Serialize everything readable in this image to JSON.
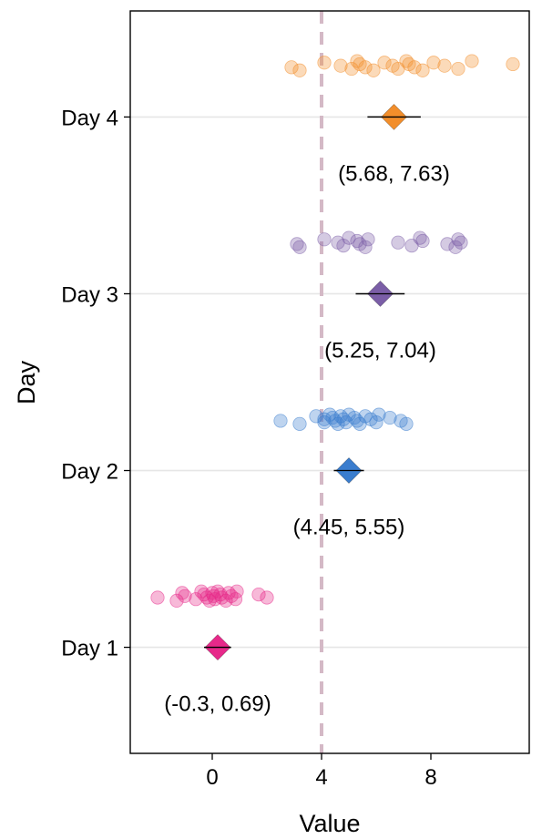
{
  "chart_data": {
    "type": "scatter",
    "title": "",
    "xlabel": "Value",
    "ylabel": "Day",
    "xlim": [
      -3,
      11.6
    ],
    "x_ticks": [
      0,
      4,
      8
    ],
    "x_tick_labels": [
      "0",
      "4",
      "8"
    ],
    "reference_line_x": 4,
    "reference_line_color": "#d4b9c6",
    "categories": [
      "Day 1",
      "Day 2",
      "Day 3",
      "Day 4"
    ],
    "grid": "horizontal",
    "series": [
      {
        "category": "Day 1",
        "color": "#e7298a",
        "points": [
          -2.0,
          -1.3,
          -1.1,
          -1.0,
          -0.6,
          -0.4,
          -0.3,
          -0.2,
          -0.1,
          0.0,
          0.05,
          0.1,
          0.2,
          0.3,
          0.35,
          0.5,
          0.6,
          0.7,
          0.85,
          0.9,
          1.7,
          2.0
        ],
        "mean": 0.2,
        "ci": [
          -0.3,
          0.69
        ],
        "ci_label": "(-0.3, 0.69)"
      },
      {
        "category": "Day 2",
        "color": "#3a7dce",
        "points": [
          2.5,
          3.2,
          3.8,
          4.1,
          4.1,
          4.3,
          4.4,
          4.5,
          4.6,
          4.7,
          4.8,
          4.9,
          5.0,
          5.2,
          5.3,
          5.4,
          5.6,
          5.8,
          6.0,
          6.1,
          6.5,
          6.9,
          7.1
        ],
        "mean": 5.0,
        "ci": [
          4.45,
          5.55
        ],
        "ci_label": "(4.45, 5.55)"
      },
      {
        "category": "Day 3",
        "color": "#7b5ea7",
        "points": [
          3.1,
          3.2,
          4.1,
          4.6,
          4.8,
          5.0,
          5.3,
          5.4,
          5.6,
          5.7,
          6.8,
          7.3,
          7.6,
          7.7,
          8.6,
          8.9,
          9.0,
          9.1
        ],
        "mean": 6.15,
        "ci": [
          5.25,
          7.04
        ],
        "ci_label": "(5.25, 7.04)"
      },
      {
        "category": "Day 4",
        "color": "#f28e2b",
        "points": [
          2.9,
          3.2,
          4.1,
          4.7,
          5.1,
          5.3,
          5.4,
          5.6,
          5.9,
          6.3,
          6.6,
          6.8,
          7.1,
          7.2,
          7.4,
          7.7,
          8.1,
          8.5,
          9.0,
          9.5,
          11.0
        ],
        "mean": 6.65,
        "ci": [
          5.68,
          7.63
        ],
        "ci_label": "(5.68, 7.63)"
      }
    ]
  }
}
